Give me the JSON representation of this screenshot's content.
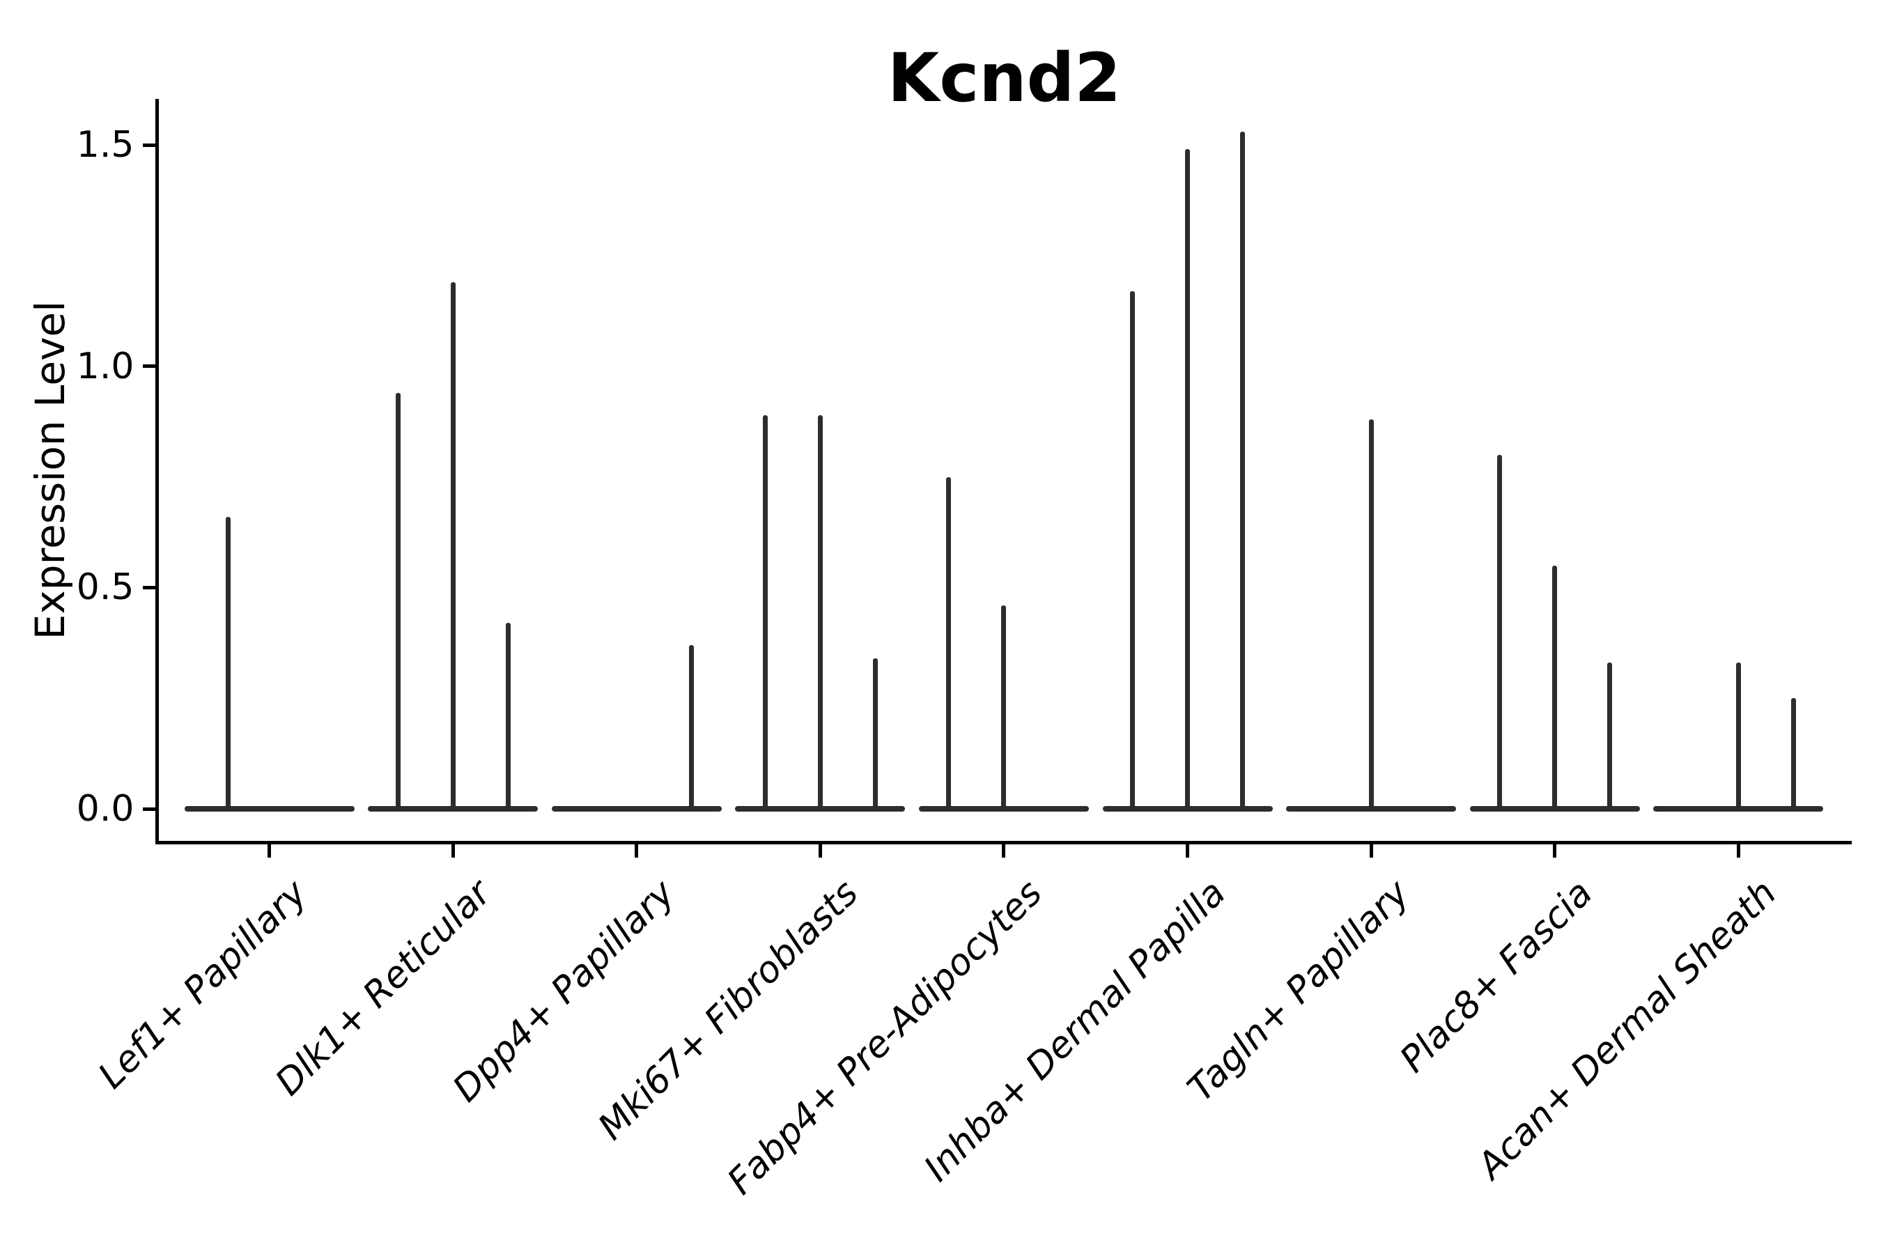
{
  "figure": {
    "title": "Kcnd2",
    "y_axis": {
      "label": "Expression Level",
      "tick_labels": [
        "0.0",
        "0.5",
        "1.0",
        "1.5"
      ]
    },
    "colors": {
      "violin": "#2d2d2d",
      "axis": "#000000",
      "text": "#000000",
      "background": "#ffffff"
    }
  },
  "chart_data": {
    "type": "violin",
    "title": "Kcnd2",
    "xlabel": "",
    "ylabel": "Expression Level",
    "ytick_values": [
      0.0,
      0.5,
      1.0,
      1.5
    ],
    "ylim": [
      -0.08,
      1.6
    ],
    "grid": false,
    "legend": "none",
    "categories": [
      "Lef1+ Papillary",
      "Dlk1+ Reticular",
      "Dpp4+ Papillary",
      "Mki67+ Fibroblasts",
      "Fabp4+ Pre-Adipocytes",
      "Inhba+ Dermal Papilla",
      "Tagln+ Papillary",
      "Plac8+ Fascia",
      "Acan+ Dermal Sheath"
    ],
    "description": "Each category shows 1-3 sub-violins; every sub-violin is a wide flat base at expression 0 with a thin central spike rising to its maximum expression value. Spikes listed per category by sub-violin slot (left to right).",
    "groups": [
      {
        "label": "Lef1+ Papillary",
        "n_violins": 2,
        "spikes": [
          {
            "slot": 0,
            "max": 0.66
          }
        ]
      },
      {
        "label": "Dlk1+ Reticular",
        "n_violins": 3,
        "spikes": [
          {
            "slot": 0,
            "max": 0.94
          },
          {
            "slot": 1,
            "max": 1.19
          },
          {
            "slot": 2,
            "max": 0.42
          }
        ]
      },
      {
        "label": "Dpp4+ Papillary",
        "n_violins": 3,
        "spikes": [
          {
            "slot": 2,
            "max": 0.37
          }
        ]
      },
      {
        "label": "Mki67+ Fibroblasts",
        "n_violins": 3,
        "spikes": [
          {
            "slot": 0,
            "max": 0.89
          },
          {
            "slot": 1,
            "max": 0.89
          },
          {
            "slot": 2,
            "max": 0.34
          }
        ]
      },
      {
        "label": "Fabp4+ Pre-Adipocytes",
        "n_violins": 3,
        "spikes": [
          {
            "slot": 0,
            "max": 0.75
          },
          {
            "slot": 1,
            "max": 0.46
          }
        ]
      },
      {
        "label": "Inhba+ Dermal Papilla",
        "n_violins": 3,
        "spikes": [
          {
            "slot": 0,
            "max": 1.17
          },
          {
            "slot": 1,
            "max": 1.49
          },
          {
            "slot": 2,
            "max": 1.53
          }
        ]
      },
      {
        "label": "Tagln+ Papillary",
        "n_violins": 3,
        "spikes": [
          {
            "slot": 1,
            "max": 0.88
          }
        ]
      },
      {
        "label": "Plac8+ Fascia",
        "n_violins": 3,
        "spikes": [
          {
            "slot": 0,
            "max": 0.8
          },
          {
            "slot": 1,
            "max": 0.55
          },
          {
            "slot": 2,
            "max": 0.33
          }
        ]
      },
      {
        "label": "Acan+ Dermal Sheath",
        "n_violins": 3,
        "spikes": [
          {
            "slot": 1,
            "max": 0.33
          },
          {
            "slot": 2,
            "max": 0.25
          }
        ]
      }
    ]
  }
}
